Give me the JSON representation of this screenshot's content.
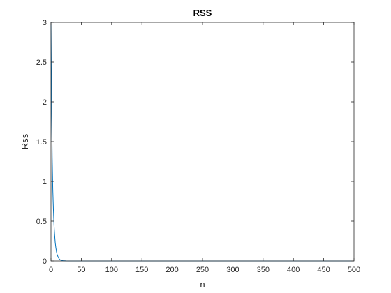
{
  "chart_data": {
    "type": "line",
    "title": "RSS",
    "xlabel": "n",
    "ylabel": "Rss",
    "xlim": [
      0,
      500
    ],
    "ylim": [
      0,
      3
    ],
    "xticks": [
      0,
      50,
      100,
      150,
      200,
      250,
      300,
      350,
      400,
      450,
      500
    ],
    "yticks": [
      0,
      0.5,
      1,
      1.5,
      2,
      2.5,
      3
    ],
    "ytick_labels": [
      "0",
      "0.5",
      "1",
      "1.5",
      "2",
      "2.5",
      "3"
    ],
    "grid": false,
    "line_color": "#0072BD",
    "series": [
      {
        "x": [
          0,
          1,
          2,
          3,
          4,
          5,
          6,
          7,
          8,
          9,
          10,
          12,
          14,
          16,
          18,
          20,
          25,
          30,
          40,
          60,
          100,
          200,
          300,
          400,
          500
        ],
        "values": [
          3.0,
          1.95,
          1.3,
          0.9,
          0.65,
          0.45,
          0.33,
          0.23,
          0.17,
          0.12,
          0.085,
          0.045,
          0.022,
          0.011,
          0.006,
          0.003,
          0.001,
          0.0,
          0.0,
          0.0,
          0.0,
          0.0,
          0.0,
          0.0,
          0.0
        ]
      }
    ]
  }
}
